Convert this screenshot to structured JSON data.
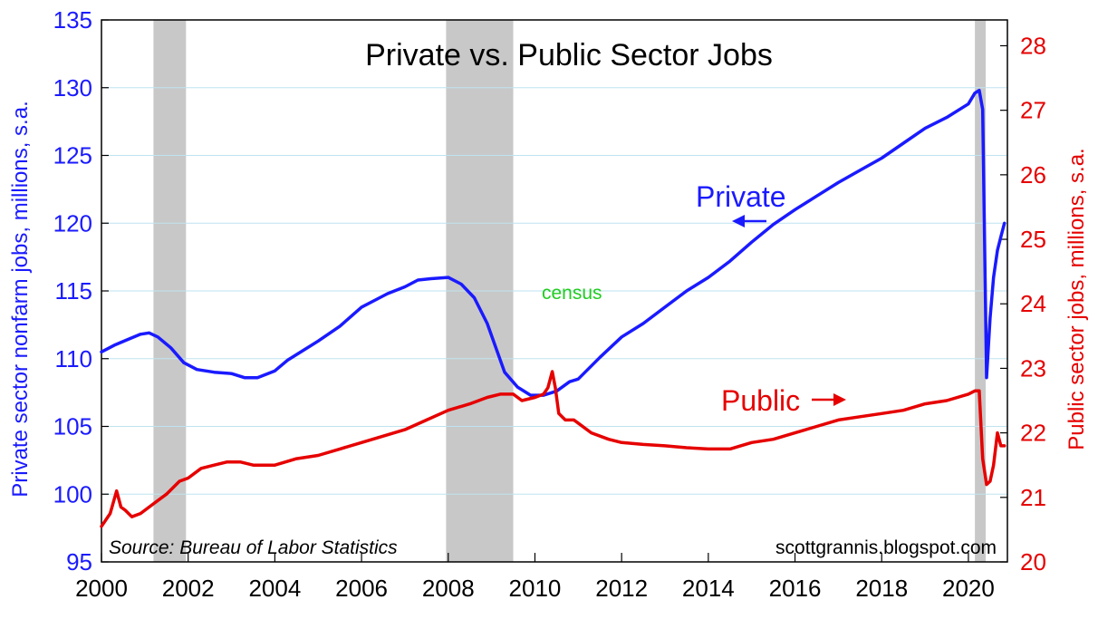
{
  "chart_data": {
    "type": "line",
    "title": "Private vs. Public Sector Jobs",
    "source": "Source: Bureau of Labor Statistics",
    "credit": "scottgrannis.blogspot.com",
    "x_ticks": [
      "2000",
      "2002",
      "2004",
      "2006",
      "2008",
      "2010",
      "2012",
      "2014",
      "2016",
      "2018",
      "2020"
    ],
    "xlim": [
      2000,
      2020.9
    ],
    "left_axis": {
      "label": "Private sector nonfarm jobs, millions, s.a.",
      "ticks": [
        "95",
        "100",
        "105",
        "110",
        "115",
        "120",
        "125",
        "130",
        "135"
      ],
      "ylim": [
        95,
        135
      ],
      "color": "#1a1aff"
    },
    "right_axis": {
      "label": "Public sector jobs, millions, s.a.",
      "ticks": [
        "20",
        "21",
        "22",
        "23",
        "24",
        "25",
        "26",
        "27",
        "28"
      ],
      "ylim": [
        20,
        28.4
      ],
      "color": "#e60000"
    },
    "recessions": [
      [
        2001.2,
        2001.95
      ],
      [
        2007.95,
        2009.5
      ],
      [
        2020.15,
        2020.4
      ]
    ],
    "annotations": {
      "private_label": "Private",
      "public_label": "Public",
      "census_label": "census",
      "census_color": "#22cc22"
    },
    "series": [
      {
        "name": "Private",
        "axis": "left",
        "color": "#1a1aff",
        "x": [
          2000.0,
          2000.3,
          2000.6,
          2000.9,
          2001.1,
          2001.3,
          2001.6,
          2001.9,
          2002.2,
          2002.6,
          2003.0,
          2003.3,
          2003.6,
          2004.0,
          2004.3,
          2004.6,
          2005.0,
          2005.5,
          2006.0,
          2006.3,
          2006.6,
          2007.0,
          2007.3,
          2007.6,
          2008.0,
          2008.3,
          2008.6,
          2008.9,
          2009.1,
          2009.3,
          2009.6,
          2009.9,
          2010.2,
          2010.5,
          2010.8,
          2011.0,
          2011.5,
          2012.0,
          2012.5,
          2013.0,
          2013.5,
          2014.0,
          2014.5,
          2015.0,
          2015.5,
          2016.0,
          2016.5,
          2017.0,
          2017.5,
          2018.0,
          2018.5,
          2019.0,
          2019.5,
          2020.0,
          2020.15,
          2020.25,
          2020.33,
          2020.42,
          2020.5,
          2020.58,
          2020.67,
          2020.75,
          2020.83
        ],
        "y": [
          110.5,
          111.0,
          111.4,
          111.8,
          111.9,
          111.6,
          110.8,
          109.7,
          109.2,
          109.0,
          108.9,
          108.6,
          108.6,
          109.1,
          109.9,
          110.5,
          111.3,
          112.4,
          113.8,
          114.3,
          114.8,
          115.3,
          115.8,
          115.9,
          116.0,
          115.5,
          114.5,
          112.6,
          110.8,
          109.0,
          107.9,
          107.3,
          107.3,
          107.6,
          108.3,
          108.5,
          110.1,
          111.6,
          112.6,
          113.8,
          115.0,
          116.0,
          117.2,
          118.6,
          119.9,
          121.0,
          122.0,
          123.0,
          123.9,
          124.8,
          125.9,
          127.0,
          127.8,
          128.8,
          129.6,
          129.8,
          128.4,
          108.6,
          113.0,
          116.0,
          118.0,
          119.0,
          120.0
        ]
      },
      {
        "name": "Public",
        "axis": "right",
        "color": "#e60000",
        "x": [
          2000.0,
          2000.2,
          2000.35,
          2000.45,
          2000.55,
          2000.7,
          2000.9,
          2001.2,
          2001.5,
          2001.8,
          2002.0,
          2002.3,
          2002.6,
          2002.9,
          2003.2,
          2003.5,
          2003.8,
          2004.0,
          2004.5,
          2005.0,
          2005.5,
          2006.0,
          2006.5,
          2007.0,
          2007.5,
          2008.0,
          2008.5,
          2008.9,
          2009.2,
          2009.5,
          2009.7,
          2010.0,
          2010.2,
          2010.3,
          2010.4,
          2010.47,
          2010.55,
          2010.7,
          2010.9,
          2011.0,
          2011.3,
          2011.7,
          2012.0,
          2012.5,
          2013.0,
          2013.5,
          2014.0,
          2014.5,
          2015.0,
          2015.5,
          2016.0,
          2016.5,
          2017.0,
          2017.5,
          2018.0,
          2018.5,
          2019.0,
          2019.5,
          2020.0,
          2020.15,
          2020.25,
          2020.33,
          2020.42,
          2020.5,
          2020.58,
          2020.67,
          2020.75,
          2020.83
        ],
        "y": [
          20.55,
          20.75,
          21.1,
          20.85,
          20.8,
          20.7,
          20.75,
          20.9,
          21.05,
          21.25,
          21.3,
          21.45,
          21.5,
          21.55,
          21.55,
          21.5,
          21.5,
          21.5,
          21.6,
          21.65,
          21.75,
          21.85,
          21.95,
          22.05,
          22.2,
          22.35,
          22.45,
          22.55,
          22.6,
          22.6,
          22.5,
          22.55,
          22.6,
          22.7,
          22.95,
          22.7,
          22.3,
          22.2,
          22.2,
          22.15,
          22.0,
          21.9,
          21.85,
          21.82,
          21.8,
          21.77,
          21.75,
          21.75,
          21.85,
          21.9,
          22.0,
          22.1,
          22.2,
          22.25,
          22.3,
          22.35,
          22.45,
          22.5,
          22.6,
          22.65,
          22.65,
          21.6,
          21.2,
          21.25,
          21.5,
          22.0,
          21.8,
          21.8
        ]
      }
    ]
  }
}
